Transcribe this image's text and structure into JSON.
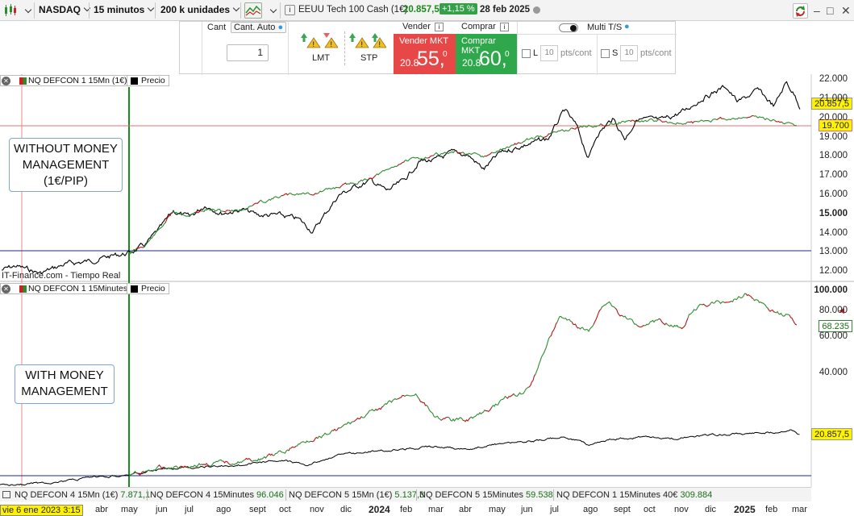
{
  "toolbar": {
    "symbol": "NASDAQ",
    "timeframe": "15 minutos",
    "units": "200 k unidades",
    "instrument": "EEUU Tech 100 Cash (1€)",
    "price": "20.857,5",
    "change": "+1,15 %",
    "date": "28 feb 2025"
  },
  "order_panel": {
    "qty_label": "Cant",
    "qty_auto": "Cant. Auto",
    "qty_value": "1",
    "lmt": "LMT",
    "stp": "STP",
    "sell_header": "Vender",
    "buy_header": "Comprar",
    "sell_label": "Vender MKT",
    "sell_small": "20.8",
    "sell_big": "55,",
    "sell_sup": "0",
    "buy_label": "Comprar MKT",
    "buy_small": "20.8",
    "buy_big": "60,",
    "buy_sup": "0",
    "multi_ts": "Multi T/S",
    "l_label": "L",
    "s_label": "S",
    "pts_value": "10",
    "pts_unit": "pts/cont"
  },
  "top_pane": {
    "series_label": "NQ DEFCON 1 15Mn (1€)",
    "price_label": "Precio",
    "annotation_line1": "WITHOUT MONEY",
    "annotation_line2": "MANAGEMENT",
    "annotation_line3": "(1€/PIP)",
    "source": "IT-Finance.com - Tiempo Real",
    "axis": [
      "22.000",
      "21.000",
      "20.000",
      "19.000",
      "18.000",
      "17.000",
      "16.000",
      "15.000",
      "14.000",
      "13.000",
      "12.000"
    ],
    "price_tag": "20.857,5",
    "level_tag": "19.700"
  },
  "bottom_pane": {
    "series_label": "NQ DEFCON 1 15Minutes",
    "price_label": "Precio",
    "annotation_line1": "WITH MONEY",
    "annotation_line2": "MANAGEMENT",
    "axis": [
      "100.000",
      "80.000",
      "60.000",
      "40.000"
    ],
    "equity_tag": "68.235",
    "price_tag": "20.857,5"
  },
  "bottom_tabs": [
    {
      "name": "NQ DEFCON 4 15Mn (1€)",
      "value": "7.871,1"
    },
    {
      "name": "NQ DEFCON 4 15Minutes",
      "value": "96.046"
    },
    {
      "name": "NQ DEFCON 5 15Mn (1€)",
      "value": "5.137,3"
    },
    {
      "name": "NQ DEFCON 5 15Minutes",
      "value": "59.538"
    },
    {
      "name": "NQ DEFCON 1 15Minutes 40€",
      "value": "309.884"
    }
  ],
  "time_axis": {
    "cursor_date": "vie 6 ene 2023 3:15",
    "labels": [
      "abr",
      "may",
      "jun",
      "jul",
      "ago",
      "sept",
      "oct",
      "nov",
      "dic",
      "2024",
      "feb",
      "mar",
      "abr",
      "may",
      "jun",
      "jul",
      "ago",
      "sept",
      "oct",
      "nov",
      "dic",
      "2025",
      "feb",
      "mar"
    ]
  },
  "colors": {
    "price_line": "#000000",
    "equity_up": "#2e8b2e",
    "equity_down": "#b01818",
    "marker_green": "#1a8a1a",
    "marker_red": "#e07070",
    "level_blue": "#1e2a8a"
  }
}
